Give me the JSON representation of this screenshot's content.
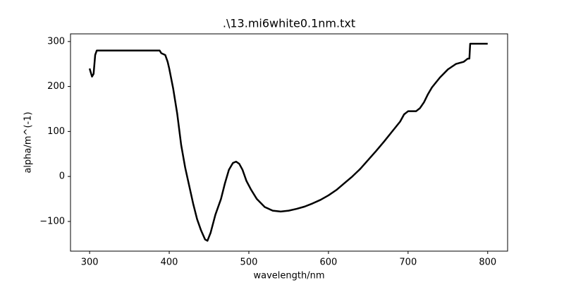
{
  "chart_data": {
    "type": "line",
    "title": ".\\13.mi6white0.1nm.txt",
    "x_label": "wavelength/nm",
    "y_label": "alpha/m^(-1)",
    "x": [
      300,
      303,
      305,
      307,
      309,
      320,
      350,
      388,
      390,
      395,
      398,
      400,
      405,
      410,
      415,
      420,
      425,
      430,
      435,
      440,
      445,
      448,
      452,
      458,
      465,
      470,
      475,
      480,
      484,
      488,
      492,
      497,
      503,
      510,
      520,
      530,
      540,
      550,
      560,
      570,
      580,
      590,
      600,
      610,
      620,
      630,
      640,
      650,
      660,
      670,
      680,
      690,
      695,
      700,
      705,
      710,
      715,
      720,
      725,
      730,
      740,
      750,
      760,
      770,
      775,
      777,
      778,
      790,
      800
    ],
    "values": [
      240,
      222,
      228,
      270,
      280,
      280,
      280,
      280,
      274,
      270,
      255,
      240,
      195,
      140,
      70,
      20,
      -20,
      -60,
      -95,
      -120,
      -140,
      -143,
      -125,
      -85,
      -50,
      -15,
      15,
      30,
      33,
      28,
      15,
      -10,
      -30,
      -50,
      -68,
      -76,
      -78,
      -76,
      -72,
      -67,
      -60,
      -52,
      -42,
      -30,
      -15,
      0,
      17,
      37,
      57,
      78,
      100,
      122,
      138,
      145,
      145,
      145,
      152,
      165,
      183,
      198,
      220,
      238,
      250,
      255,
      262,
      262,
      295,
      295,
      295
    ],
    "color": "#000000",
    "xlim": [
      276,
      825
    ],
    "ylim": [
      -166,
      317
    ],
    "xticks": [
      300,
      400,
      500,
      600,
      700,
      800
    ],
    "yticks": [
      {
        "value": -100,
        "label": "−100"
      },
      0,
      100,
      200,
      300
    ]
  }
}
